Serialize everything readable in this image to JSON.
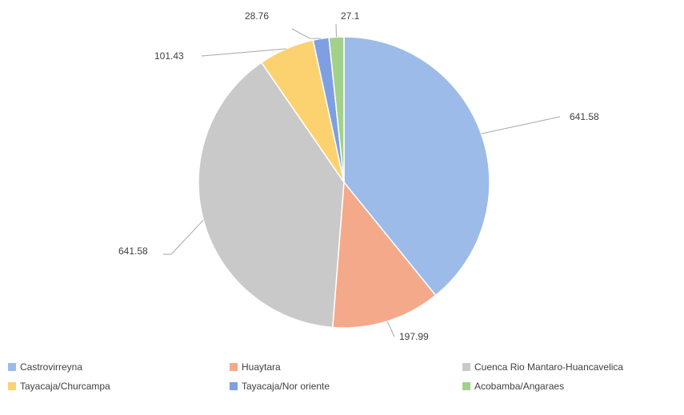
{
  "chart_data": {
    "type": "pie",
    "title": "",
    "categories": [
      "Castrovirreyna",
      "Huaytara",
      "Cuenca Rio Mantaro-Huancavelica",
      "Tayacaja/Churcampa",
      "Tayacaja/Nor oriente",
      "Acobamba/Angaraes"
    ],
    "values": [
      641.58,
      197.99,
      641.58,
      101.43,
      28.76,
      27.1
    ],
    "data_labels": [
      "641.58",
      "197.99",
      "641.58",
      "101.43",
      "28.76",
      "27.1"
    ],
    "colors": [
      "#9dbbe8",
      "#f4a98a",
      "#c9c9c9",
      "#fcd271",
      "#7f9fe0",
      "#a2d18b"
    ],
    "legend_position": "bottom"
  }
}
